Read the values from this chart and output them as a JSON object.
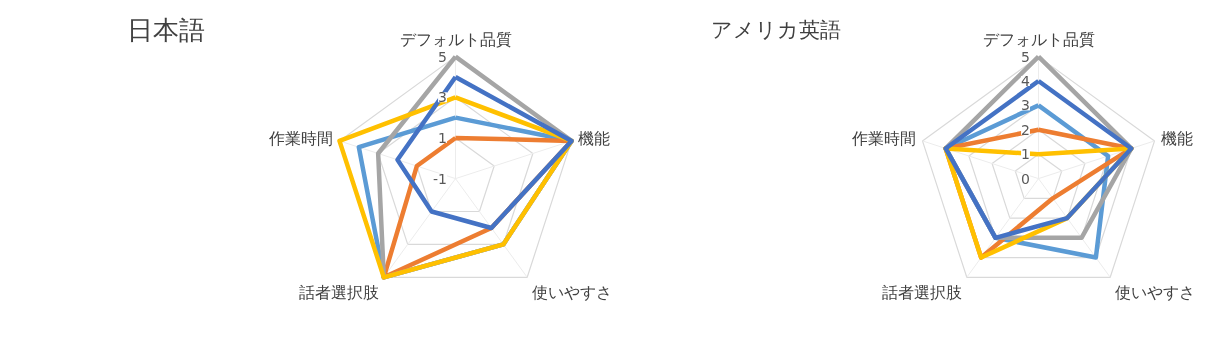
{
  "chart_data": [
    {
      "type": "radar",
      "title": "日本語",
      "categories": [
        "デフォルト品質",
        "機能",
        "使いやすさ",
        "話者選択肢",
        "作業時間"
      ],
      "ylim": [
        -1,
        5
      ],
      "yticks": [
        -1,
        1,
        3,
        5
      ],
      "grid": true,
      "series": [
        {
          "color": "#5b9bd5",
          "values": [
            2,
            5,
            3,
            5,
            4
          ]
        },
        {
          "color": "#ed7d31",
          "values": [
            1,
            5,
            2,
            5,
            1
          ]
        },
        {
          "color": "#a5a5a5",
          "values": [
            5,
            5,
            3,
            5,
            3
          ]
        },
        {
          "color": "#ffc000",
          "values": [
            3,
            5,
            3,
            5,
            5
          ]
        },
        {
          "color": "#4472c4",
          "values": [
            4,
            5,
            2,
            1,
            2
          ]
        }
      ]
    },
    {
      "type": "radar",
      "title": "アメリカ英語",
      "categories": [
        "デフォルト品質",
        "機能",
        "使いやすさ",
        "話者選択肢",
        "作業時間"
      ],
      "ylim": [
        0,
        5
      ],
      "yticks": [
        0,
        1,
        2,
        3,
        4,
        5
      ],
      "grid": true,
      "series": [
        {
          "color": "#5b9bd5",
          "values": [
            3,
            3,
            4,
            3,
            4
          ]
        },
        {
          "color": "#ed7d31",
          "values": [
            2,
            4,
            1,
            4,
            4
          ]
        },
        {
          "color": "#a5a5a5",
          "values": [
            5,
            4,
            3,
            3,
            4
          ]
        },
        {
          "color": "#ffc000",
          "values": [
            1,
            4,
            2,
            4,
            4
          ]
        },
        {
          "color": "#4472c4",
          "values": [
            4,
            4,
            2,
            3,
            4
          ]
        }
      ]
    }
  ]
}
